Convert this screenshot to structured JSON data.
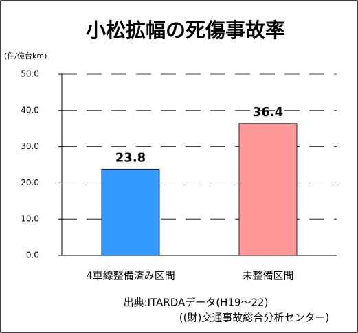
{
  "chart_data": {
    "type": "bar",
    "title": "小松拡幅の死傷事故率",
    "y_unit": "(件/億台km)",
    "categories": [
      "4車線整備済み区間",
      "未整備区間"
    ],
    "values": [
      23.8,
      36.4
    ],
    "colors": [
      "#3399ff",
      "#ff9999"
    ],
    "ylim": [
      0,
      50
    ],
    "yticks": [
      {
        "value": 0,
        "label": "0.0"
      },
      {
        "value": 10,
        "label": "10.0"
      },
      {
        "value": 20,
        "label": "20.0"
      },
      {
        "value": 30,
        "label": "30.0"
      },
      {
        "value": 40,
        "label": "40.0"
      },
      {
        "value": 50,
        "label": "50.0"
      }
    ],
    "grid": true,
    "source": [
      "出典:ITARDAデータ(H19～22)",
      "((財)交通事故総合分析センター)"
    ]
  }
}
